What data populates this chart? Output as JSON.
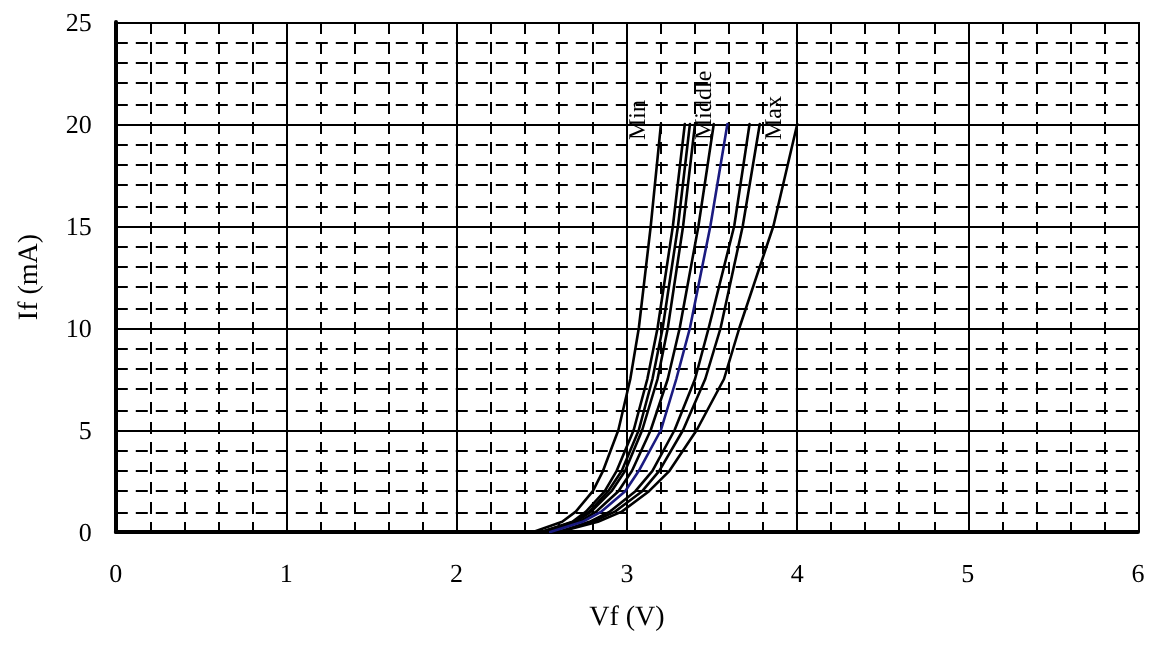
{
  "chart_data": {
    "type": "line",
    "xlabel": "Vf (V)",
    "ylabel": "If (mA)",
    "xlim": [
      0,
      6
    ],
    "xticks": [
      0,
      1,
      2,
      3,
      4,
      5,
      6
    ],
    "ylim": [
      0,
      25
    ],
    "yticks": [
      0,
      5,
      10,
      15,
      20,
      25
    ],
    "grid": true,
    "legend": false,
    "marker": "none",
    "line_style": "solid",
    "series": [
      {
        "name": "Min",
        "color": "#000000",
        "x": [
          2.45,
          2.62,
          2.7,
          2.8,
          2.86,
          2.95,
          3.02,
          3.07,
          3.14,
          3.2
        ],
        "values": [
          0,
          0.5,
          1,
          2,
          3,
          5,
          7.5,
          10,
          15,
          20
        ]
      },
      {
        "color": "#000000",
        "x": [
          2.5,
          2.68,
          2.76,
          2.87,
          2.94,
          3.04,
          3.12,
          3.18,
          3.27,
          3.34
        ],
        "values": [
          0,
          0.5,
          1,
          2,
          3,
          5,
          7.5,
          10,
          15,
          20
        ]
      },
      {
        "color": "#000000",
        "x": [
          2.5,
          2.69,
          2.78,
          2.89,
          2.97,
          3.07,
          3.15,
          3.21,
          3.3,
          3.37
        ],
        "values": [
          0,
          0.5,
          1,
          2,
          3,
          5,
          7.5,
          10,
          15,
          20
        ]
      },
      {
        "color": "#000000",
        "x": [
          2.5,
          2.7,
          2.79,
          2.91,
          2.99,
          3.09,
          3.18,
          3.24,
          3.33,
          3.4
        ],
        "values": [
          0,
          0.5,
          1,
          2,
          3,
          5,
          7.5,
          10,
          15,
          20
        ]
      },
      {
        "color": "#000000",
        "x": [
          2.55,
          2.72,
          2.82,
          2.95,
          3.03,
          3.14,
          3.24,
          3.31,
          3.42,
          3.51
        ],
        "values": [
          0,
          0.5,
          1,
          2,
          3,
          5,
          7.5,
          10,
          15,
          20
        ]
      },
      {
        "name": "Middle",
        "color": "#1a1a80",
        "x": [
          2.55,
          2.74,
          2.85,
          2.99,
          3.07,
          3.2,
          3.29,
          3.37,
          3.49,
          3.59
        ],
        "values": [
          0,
          0.5,
          1,
          2,
          3,
          5,
          7.5,
          10,
          15,
          20
        ]
      },
      {
        "color": "#000000",
        "x": [
          2.6,
          2.78,
          2.9,
          3.05,
          3.15,
          3.28,
          3.4,
          3.48,
          3.63,
          3.72
        ],
        "values": [
          0,
          0.5,
          1,
          2,
          3,
          5,
          7.5,
          10,
          15,
          20
        ]
      },
      {
        "color": "#000000",
        "x": [
          2.6,
          2.8,
          2.93,
          3.09,
          3.19,
          3.33,
          3.46,
          3.55,
          3.68,
          3.78
        ],
        "values": [
          0,
          0.5,
          1,
          2,
          3,
          5,
          7.5,
          10,
          15,
          20
        ]
      },
      {
        "name": "Max",
        "color": "#000000",
        "x": [
          2.6,
          2.83,
          2.97,
          3.13,
          3.25,
          3.41,
          3.57,
          3.66,
          3.86,
          4.0
        ],
        "values": [
          0,
          0.5,
          1,
          2,
          3,
          5,
          7.5,
          10,
          15,
          20
        ]
      }
    ]
  }
}
